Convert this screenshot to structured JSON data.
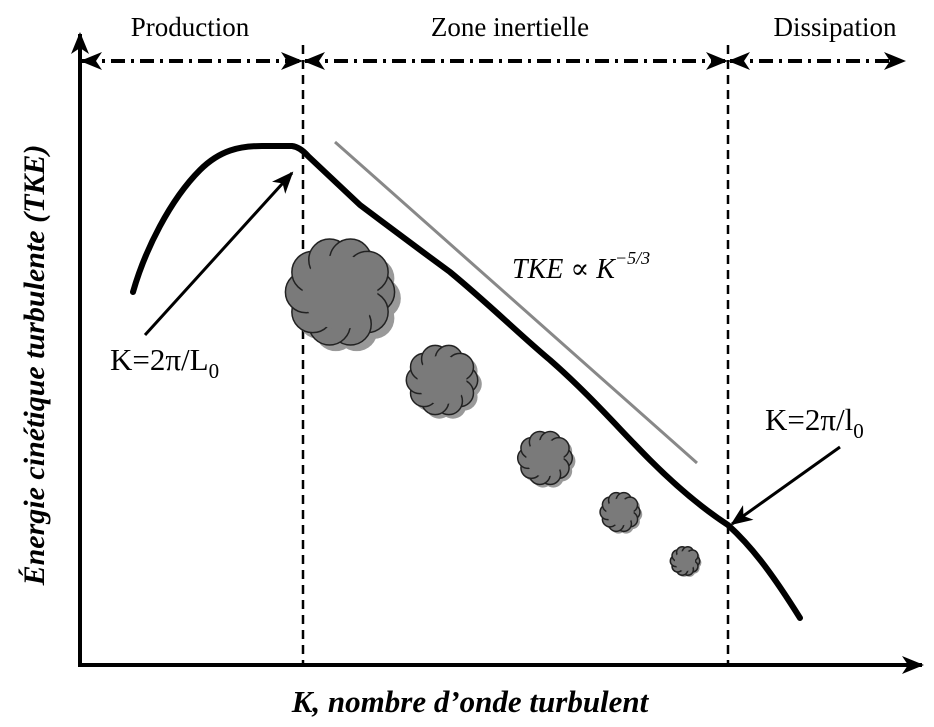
{
  "header": {
    "regions": [
      "Production",
      "Zone inertielle",
      "Dissipation"
    ]
  },
  "axes": {
    "y_label": "Énergie cinétique turbulente (TKE)",
    "x_label": "K, nombre d’onde turbulent"
  },
  "annotations": {
    "large_scale": {
      "text": "K=2π/L",
      "subscript": "0"
    },
    "small_scale": {
      "text": "K=2π/l",
      "subscript": "0"
    },
    "slope": {
      "text": "TKE ∝ K",
      "superscript": "−5/3"
    }
  }
}
